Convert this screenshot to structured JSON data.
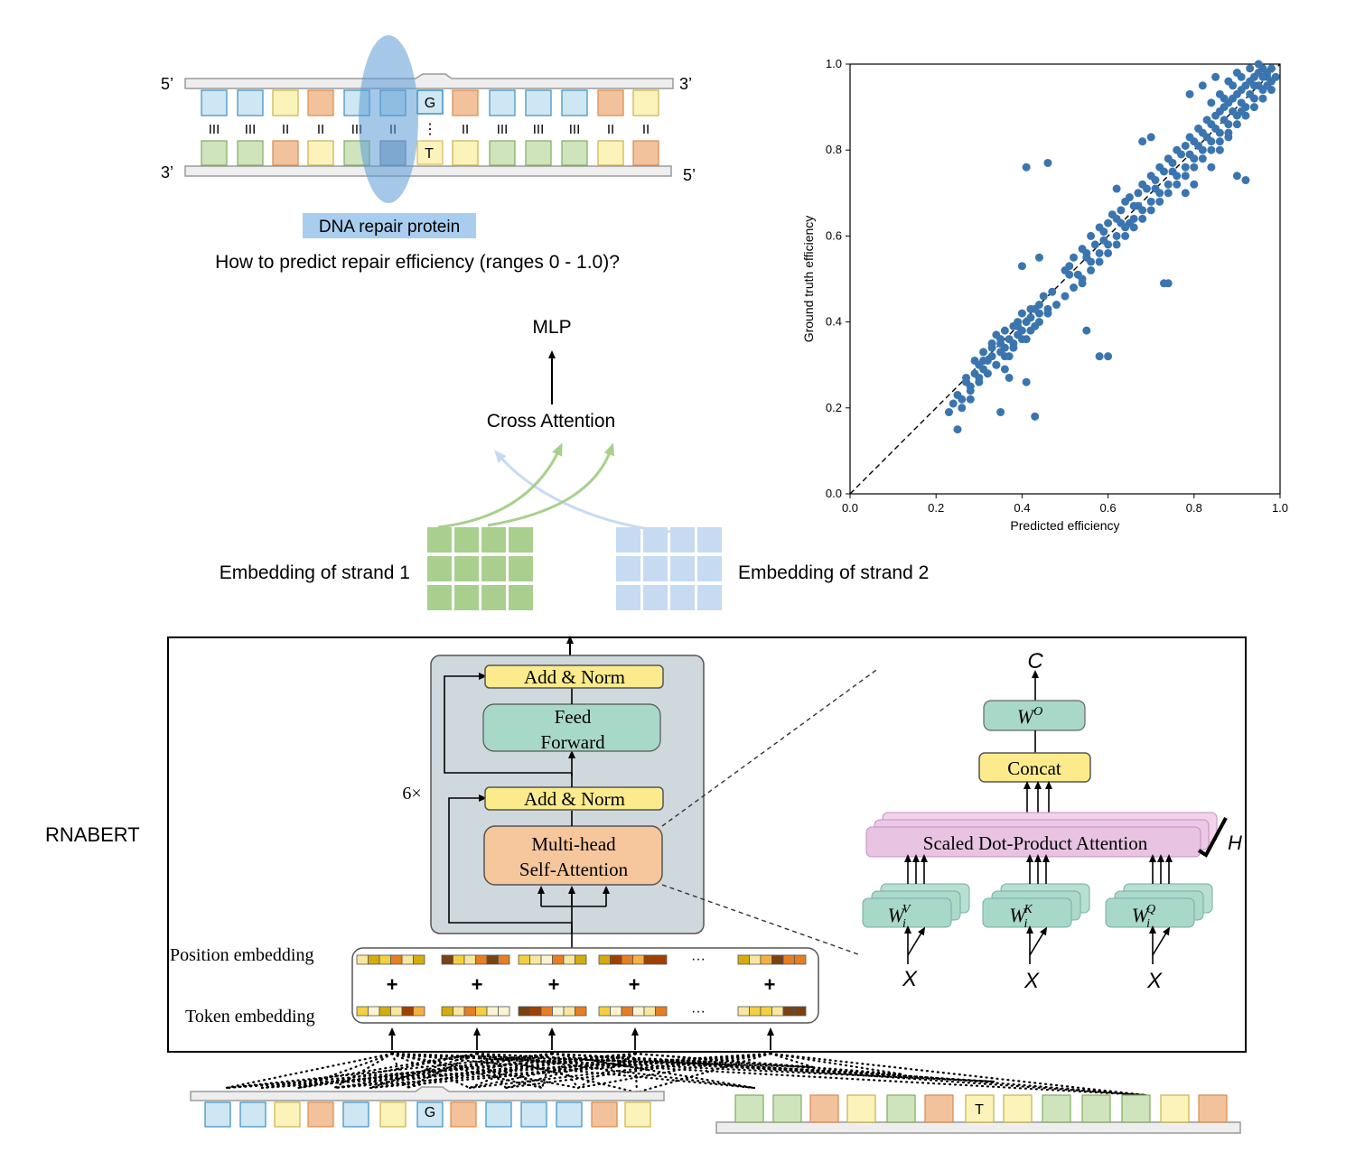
{
  "dna_top": {
    "strand1_left": "5’",
    "strand1_right": "3’",
    "strand2_left": "3’",
    "strand2_right": "5’",
    "mismatch_top_base": "G",
    "mismatch_bottom_base": "T",
    "mismatch_bonds": "⋮",
    "bonds": [
      "III",
      "III",
      "II",
      "II",
      "III",
      "II",
      "II",
      "III",
      "III",
      "III",
      "II",
      "II"
    ],
    "top_colors": [
      "#cfe7f2",
      "#cfe7f2",
      "#fbf3b9",
      "#f2c29c",
      "#cfe7f2",
      "#cfe7f2",
      "#f2c29c",
      "#cfe7f2",
      "#cfe7f2",
      "#cfe7f2",
      "#f2c29c",
      "#fbf3b9"
    ],
    "bottom_colors": [
      "#cfe3bd",
      "#cfe3bd",
      "#f2c29c",
      "#fbf3b9",
      "#cfe3bd",
      "#a9b8c8",
      "#fbf3b9",
      "#cfe3bd",
      "#cfe3bd",
      "#cfe3bd",
      "#fbf3b9",
      "#f2c29c"
    ],
    "protein_label": "DNA repair protein",
    "question": "How to predict repair efficiency (ranges 0 - 1.0)?"
  },
  "pipeline": {
    "mlp": "MLP",
    "cross_attention": "Cross Attention",
    "embedding1": "Embedding of strand 1",
    "embedding2": "Embedding of strand 2",
    "green": "#a8cf8e",
    "blue": "#c6dbf2"
  },
  "rnabert": {
    "label": "RNABERT",
    "add_norm_top": "Add & Norm",
    "feed_forward_1": "Feed",
    "feed_forward_2": "Forward",
    "add_norm_bottom": "Add & Norm",
    "multihead_1": "Multi-head",
    "multihead_2": "Self-Attention",
    "repeat": "6×",
    "position_embedding": "Position embedding",
    "token_embedding": "Token embedding",
    "plus": "+",
    "ellipsis": "···",
    "output_c": "C",
    "wo": "W",
    "wo_sup": "O",
    "concat": "Concat",
    "sdpa": "Scaled Dot-Product Attention",
    "heads": "H",
    "wv": "W",
    "wv_sub": "i",
    "wv_sup": "V",
    "wk": "W",
    "wk_sub": "i",
    "wk_sup": "K",
    "wq": "W",
    "wq_sub": "i",
    "wq_sup": "Q",
    "x1": "X",
    "x2": "X",
    "x3": "X"
  },
  "dna_bottom": {
    "strand1_base": "G",
    "strand2_base": "T",
    "strand1_colors": [
      "#cfe7f2",
      "#cfe7f2",
      "#fbf3b9",
      "#f2c29c",
      "#cfe7f2",
      "#fbf3b9",
      "#cfe7f2",
      "#f2c29c",
      "#cfe7f2",
      "#cfe7f2",
      "#cfe7f2",
      "#f2c29c",
      "#fbf3b9"
    ],
    "strand2_colors": [
      "#cfe3bd",
      "#cfe3bd",
      "#f2c29c",
      "#fbf3b9",
      "#cfe3bd",
      "#f2c29c",
      "#fbf3b9",
      "#fbf3b9",
      "#cfe3bd",
      "#cfe3bd",
      "#cfe3bd",
      "#fbf3b9",
      "#f2c29c"
    ]
  },
  "chart_data": {
    "type": "scatter",
    "xlabel": "Predicted efficiency",
    "ylabel": "Ground truth efficiency",
    "xlim": [
      0.0,
      1.0
    ],
    "ylim": [
      0.0,
      1.0
    ],
    "xticks": [
      "0.0",
      "0.2",
      "0.4",
      "0.6",
      "0.8",
      "1.0"
    ],
    "yticks": [
      "0.0",
      "0.2",
      "0.4",
      "0.6",
      "0.8",
      "1.0"
    ],
    "reference_line": "y = x (dashed)",
    "point_color": "#3b75af",
    "points": [
      [
        0.23,
        0.19
      ],
      [
        0.24,
        0.21
      ],
      [
        0.25,
        0.23
      ],
      [
        0.26,
        0.22
      ],
      [
        0.25,
        0.15
      ],
      [
        0.27,
        0.26
      ],
      [
        0.28,
        0.24
      ],
      [
        0.28,
        0.22
      ],
      [
        0.29,
        0.28
      ],
      [
        0.3,
        0.27
      ],
      [
        0.3,
        0.3
      ],
      [
        0.31,
        0.29
      ],
      [
        0.31,
        0.33
      ],
      [
        0.32,
        0.31
      ],
      [
        0.32,
        0.28
      ],
      [
        0.33,
        0.35
      ],
      [
        0.33,
        0.32
      ],
      [
        0.34,
        0.3
      ],
      [
        0.34,
        0.37
      ],
      [
        0.35,
        0.33
      ],
      [
        0.35,
        0.36
      ],
      [
        0.36,
        0.34
      ],
      [
        0.36,
        0.38
      ],
      [
        0.37,
        0.36
      ],
      [
        0.37,
        0.32
      ],
      [
        0.38,
        0.39
      ],
      [
        0.38,
        0.35
      ],
      [
        0.39,
        0.37
      ],
      [
        0.39,
        0.4
      ],
      [
        0.4,
        0.38
      ],
      [
        0.4,
        0.42
      ],
      [
        0.41,
        0.4
      ],
      [
        0.41,
        0.36
      ],
      [
        0.42,
        0.41
      ],
      [
        0.42,
        0.43
      ],
      [
        0.43,
        0.39
      ],
      [
        0.44,
        0.44
      ],
      [
        0.44,
        0.42
      ],
      [
        0.45,
        0.46
      ],
      [
        0.46,
        0.43
      ],
      [
        0.35,
        0.19
      ],
      [
        0.43,
        0.18
      ],
      [
        0.41,
        0.26
      ],
      [
        0.37,
        0.27
      ],
      [
        0.26,
        0.2
      ],
      [
        0.29,
        0.31
      ],
      [
        0.33,
        0.34
      ],
      [
        0.36,
        0.29
      ],
      [
        0.4,
        0.53
      ],
      [
        0.44,
        0.55
      ],
      [
        0.41,
        0.76
      ],
      [
        0.46,
        0.77
      ],
      [
        0.5,
        0.52
      ],
      [
        0.51,
        0.53
      ],
      [
        0.52,
        0.55
      ],
      [
        0.53,
        0.51
      ],
      [
        0.54,
        0.57
      ],
      [
        0.55,
        0.56
      ],
      [
        0.54,
        0.49
      ],
      [
        0.56,
        0.6
      ],
      [
        0.57,
        0.58
      ],
      [
        0.58,
        0.62
      ],
      [
        0.59,
        0.61
      ],
      [
        0.6,
        0.63
      ],
      [
        0.61,
        0.65
      ],
      [
        0.62,
        0.64
      ],
      [
        0.63,
        0.66
      ],
      [
        0.64,
        0.68
      ],
      [
        0.65,
        0.69
      ],
      [
        0.66,
        0.67
      ],
      [
        0.67,
        0.7
      ],
      [
        0.68,
        0.72
      ],
      [
        0.69,
        0.71
      ],
      [
        0.7,
        0.74
      ],
      [
        0.71,
        0.73
      ],
      [
        0.72,
        0.76
      ],
      [
        0.73,
        0.75
      ],
      [
        0.74,
        0.78
      ],
      [
        0.75,
        0.77
      ],
      [
        0.76,
        0.8
      ],
      [
        0.77,
        0.79
      ],
      [
        0.78,
        0.81
      ],
      [
        0.79,
        0.83
      ],
      [
        0.8,
        0.82
      ],
      [
        0.81,
        0.85
      ],
      [
        0.82,
        0.84
      ],
      [
        0.83,
        0.87
      ],
      [
        0.84,
        0.86
      ],
      [
        0.85,
        0.88
      ],
      [
        0.86,
        0.89
      ],
      [
        0.87,
        0.9
      ],
      [
        0.88,
        0.91
      ],
      [
        0.89,
        0.92
      ],
      [
        0.9,
        0.93
      ],
      [
        0.91,
        0.94
      ],
      [
        0.92,
        0.95
      ],
      [
        0.93,
        0.96
      ],
      [
        0.94,
        0.97
      ],
      [
        0.95,
        0.98
      ],
      [
        0.96,
        0.99
      ],
      [
        0.97,
        0.97
      ],
      [
        0.98,
        0.96
      ],
      [
        0.96,
        0.94
      ],
      [
        0.94,
        0.92
      ],
      [
        0.92,
        0.9
      ],
      [
        0.9,
        0.88
      ],
      [
        0.88,
        0.86
      ],
      [
        0.86,
        0.84
      ],
      [
        0.84,
        0.82
      ],
      [
        0.82,
        0.8
      ],
      [
        0.8,
        0.78
      ],
      [
        0.78,
        0.76
      ],
      [
        0.76,
        0.74
      ],
      [
        0.74,
        0.72
      ],
      [
        0.72,
        0.7
      ],
      [
        0.7,
        0.68
      ],
      [
        0.68,
        0.66
      ],
      [
        0.66,
        0.64
      ],
      [
        0.64,
        0.62
      ],
      [
        0.62,
        0.6
      ],
      [
        0.6,
        0.58
      ],
      [
        0.58,
        0.56
      ],
      [
        0.56,
        0.54
      ],
      [
        0.55,
        0.38
      ],
      [
        0.58,
        0.32
      ],
      [
        0.6,
        0.32
      ],
      [
        0.73,
        0.49
      ],
      [
        0.74,
        0.49
      ],
      [
        0.68,
        0.82
      ],
      [
        0.7,
        0.83
      ],
      [
        0.62,
        0.71
      ],
      [
        0.65,
        0.63
      ],
      [
        0.78,
        0.7
      ],
      [
        0.8,
        0.72
      ],
      [
        0.84,
        0.76
      ],
      [
        0.9,
        0.74
      ],
      [
        0.92,
        0.73
      ],
      [
        0.86,
        0.8
      ],
      [
        0.88,
        0.83
      ],
      [
        0.79,
        0.93
      ],
      [
        0.82,
        0.95
      ],
      [
        0.85,
        0.97
      ],
      [
        0.87,
        0.92
      ],
      [
        0.89,
        0.95
      ],
      [
        0.91,
        0.97
      ],
      [
        0.93,
        0.99
      ],
      [
        0.95,
        1.0
      ],
      [
        0.97,
        0.98
      ],
      [
        0.99,
        0.97
      ],
      [
        0.98,
        0.94
      ],
      [
        0.96,
        0.92
      ],
      [
        0.94,
        0.9
      ],
      [
        0.92,
        0.88
      ],
      [
        0.9,
        0.86
      ],
      [
        0.88,
        0.84
      ],
      [
        0.86,
        0.82
      ],
      [
        0.84,
        0.8
      ],
      [
        0.82,
        0.78
      ],
      [
        0.8,
        0.76
      ],
      [
        0.78,
        0.74
      ],
      [
        0.76,
        0.72
      ],
      [
        0.74,
        0.7
      ],
      [
        0.72,
        0.68
      ],
      [
        0.7,
        0.66
      ],
      [
        0.68,
        0.64
      ],
      [
        0.66,
        0.62
      ],
      [
        0.64,
        0.6
      ],
      [
        0.62,
        0.58
      ],
      [
        0.6,
        0.56
      ],
      [
        0.58,
        0.54
      ],
      [
        0.56,
        0.52
      ],
      [
        0.54,
        0.5
      ],
      [
        0.52,
        0.48
      ],
      [
        0.5,
        0.46
      ],
      [
        0.48,
        0.44
      ],
      [
        0.46,
        0.42
      ],
      [
        0.44,
        0.4
      ],
      [
        0.42,
        0.38
      ],
      [
        0.4,
        0.36
      ],
      [
        0.38,
        0.34
      ],
      [
        0.36,
        0.32
      ],
      [
        0.34,
        0.3
      ],
      [
        0.32,
        0.28
      ],
      [
        0.3,
        0.26
      ],
      [
        0.28,
        0.25
      ],
      [
        0.27,
        0.27
      ],
      [
        0.31,
        0.31
      ],
      [
        0.35,
        0.35
      ],
      [
        0.39,
        0.39
      ],
      [
        0.43,
        0.43
      ],
      [
        0.47,
        0.47
      ],
      [
        0.51,
        0.51
      ],
      [
        0.55,
        0.55
      ],
      [
        0.59,
        0.59
      ],
      [
        0.63,
        0.63
      ],
      [
        0.67,
        0.67
      ],
      [
        0.71,
        0.71
      ],
      [
        0.75,
        0.75
      ],
      [
        0.79,
        0.79
      ],
      [
        0.83,
        0.83
      ],
      [
        0.87,
        0.87
      ],
      [
        0.91,
        0.91
      ],
      [
        0.95,
        0.95
      ],
      [
        0.97,
        0.95
      ],
      [
        0.93,
        0.93
      ],
      [
        0.89,
        0.89
      ],
      [
        0.85,
        0.85
      ],
      [
        0.81,
        0.81
      ],
      [
        0.88,
        0.96
      ],
      [
        0.9,
        0.98
      ],
      [
        0.86,
        0.93
      ],
      [
        0.84,
        0.91
      ],
      [
        0.94,
        0.95
      ],
      [
        0.96,
        0.97
      ],
      [
        0.98,
        0.99
      ],
      [
        0.91,
        0.89
      ]
    ]
  }
}
